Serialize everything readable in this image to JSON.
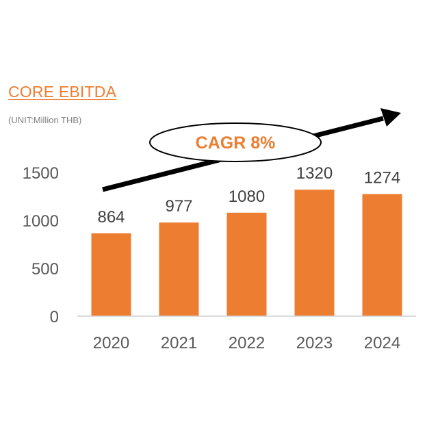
{
  "chart_data": {
    "type": "bar",
    "title": "CORE EBITDA",
    "subtitle": "(UNIT:Million  THB)",
    "categories": [
      "2020",
      "2021",
      "2022",
      "2023",
      "2024"
    ],
    "values": [
      864,
      977,
      1080,
      1320,
      1274
    ],
    "y_ticks": [
      "0",
      "500",
      "1000",
      "1500"
    ],
    "ylim": [
      0,
      1500
    ],
    "bar_color": "#ED7D31",
    "grid": false,
    "annotation": "CAGR 8%"
  }
}
